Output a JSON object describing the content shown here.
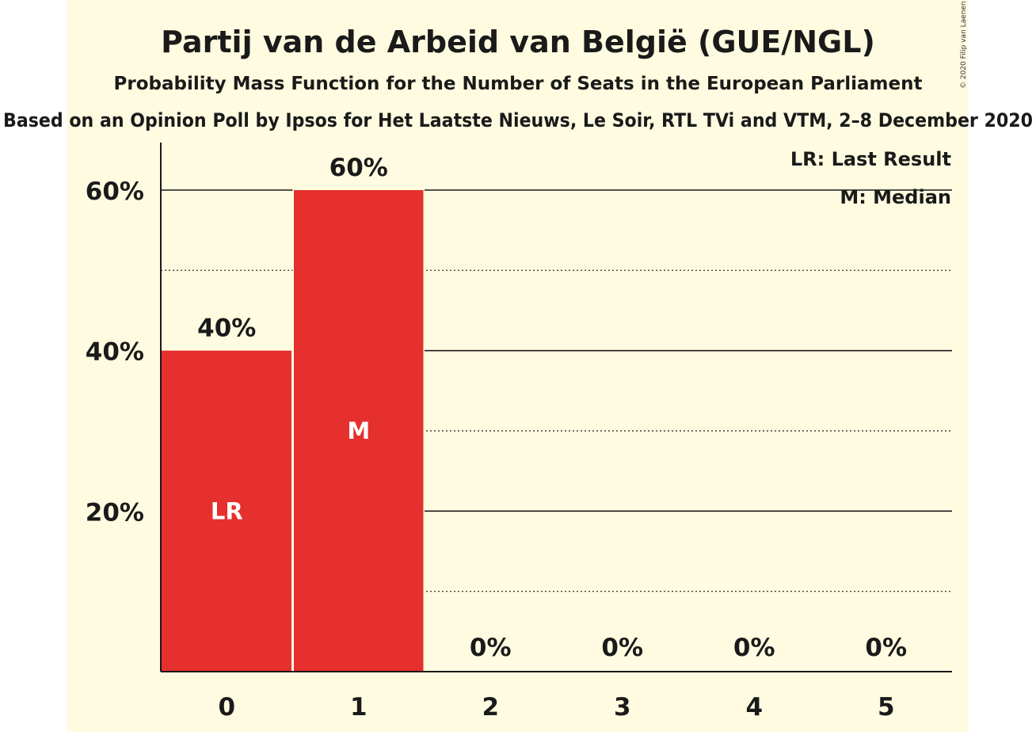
{
  "colors": {
    "background": "#fffbe0",
    "bar": "#e5302d",
    "text": "#1a1a1a",
    "marker_text": "#ffffff"
  },
  "chart_data": {
    "type": "bar",
    "title": "Partij van de Arbeid van België (GUE/NGL)",
    "subtitle": "Probability Mass Function for the Number of Seats in the European Parliament",
    "source": "Based on an Opinion Poll by Ipsos for Het Laatste Nieuws, Le Soir, RTL TVi and VTM, 2–8 December 2020",
    "copyright": "© 2020 Filip van Laenen",
    "categories": [
      "0",
      "1",
      "2",
      "3",
      "4",
      "5"
    ],
    "values": [
      40,
      60,
      0,
      0,
      0,
      0
    ],
    "data_labels": [
      "40%",
      "60%",
      "0%",
      "0%",
      "0%",
      "0%"
    ],
    "bar_markers": [
      "LR",
      "M",
      "",
      "",
      "",
      ""
    ],
    "ylim": [
      0,
      65
    ],
    "major_gridlines": [
      20,
      40,
      60
    ],
    "minor_gridlines": [
      10,
      30,
      50
    ],
    "yticks": [
      {
        "value": 20,
        "label": "20%"
      },
      {
        "value": 40,
        "label": "40%"
      },
      {
        "value": 60,
        "label": "60%"
      }
    ],
    "legend": {
      "placement": "top-right",
      "entries": [
        "LR: Last Result",
        "M: Median"
      ]
    }
  }
}
